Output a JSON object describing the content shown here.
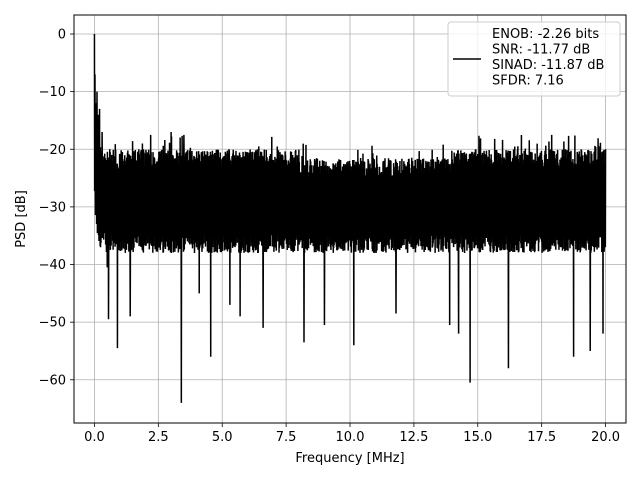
{
  "chart_data": {
    "type": "line",
    "title": "",
    "xlabel": "Frequency [MHz]",
    "ylabel": "PSD [dB]",
    "xlim": [
      -0.8,
      20.8
    ],
    "ylim": [
      -67.5,
      3.3
    ],
    "xticks": [
      0.0,
      2.5,
      5.0,
      7.5,
      10.0,
      12.5,
      15.0,
      17.5,
      20.0
    ],
    "xtick_labels": [
      "0.0",
      "2.5",
      "5.0",
      "7.5",
      "10.0",
      "12.5",
      "15.0",
      "17.5",
      "20.0"
    ],
    "yticks": [
      0,
      -10,
      -20,
      -30,
      -40,
      -50,
      -60
    ],
    "ytick_labels": [
      "0",
      "−10",
      "−20",
      "−30",
      "−40",
      "−50",
      "−60"
    ],
    "grid": true,
    "legend_position": "top-right",
    "line_color": "#000000",
    "series": [
      {
        "name": "ENOB: -2.26 bits\nSNR: -11.77 dB\nSINAD: -11.87 dB\nSFDR: 7.16",
        "noise_floor_db": [
          -38,
          -20
        ],
        "features": [
          {
            "x": 0.0,
            "y": 0
          },
          {
            "x": 0.02,
            "y": -7
          },
          {
            "x": 0.05,
            "y": -12
          },
          {
            "x": 0.1,
            "y": -10
          },
          {
            "x": 0.15,
            "y": -14
          },
          {
            "x": 0.2,
            "y": -13
          },
          {
            "x": 0.3,
            "y": -17
          },
          {
            "x": 0.5,
            "y": -40.5
          },
          {
            "x": 0.55,
            "y": -49.5
          },
          {
            "x": 0.9,
            "y": -54.5
          },
          {
            "x": 1.4,
            "y": -49
          },
          {
            "x": 2.2,
            "y": -45
          },
          {
            "x": 2.2,
            "y": -17.5
          },
          {
            "x": 3.4,
            "y": -64
          },
          {
            "x": 3.0,
            "y": -17
          },
          {
            "x": 3.5,
            "y": -17.5
          },
          {
            "x": 4.1,
            "y": -45
          },
          {
            "x": 4.55,
            "y": -56
          },
          {
            "x": 5.3,
            "y": -47
          },
          {
            "x": 5.7,
            "y": -49
          },
          {
            "x": 6.6,
            "y": -51
          },
          {
            "x": 8.2,
            "y": -53.5
          },
          {
            "x": 9.0,
            "y": -50.5
          },
          {
            "x": 10.15,
            "y": -54
          },
          {
            "x": 11.8,
            "y": -48.5
          },
          {
            "x": 13.9,
            "y": -50.5
          },
          {
            "x": 14.25,
            "y": -52
          },
          {
            "x": 14.7,
            "y": -60.5
          },
          {
            "x": 16.2,
            "y": -58
          },
          {
            "x": 18.75,
            "y": -56
          },
          {
            "x": 19.4,
            "y": -55
          },
          {
            "x": 19.9,
            "y": -52
          },
          {
            "x": 20.0,
            "y": -20
          }
        ]
      }
    ]
  }
}
